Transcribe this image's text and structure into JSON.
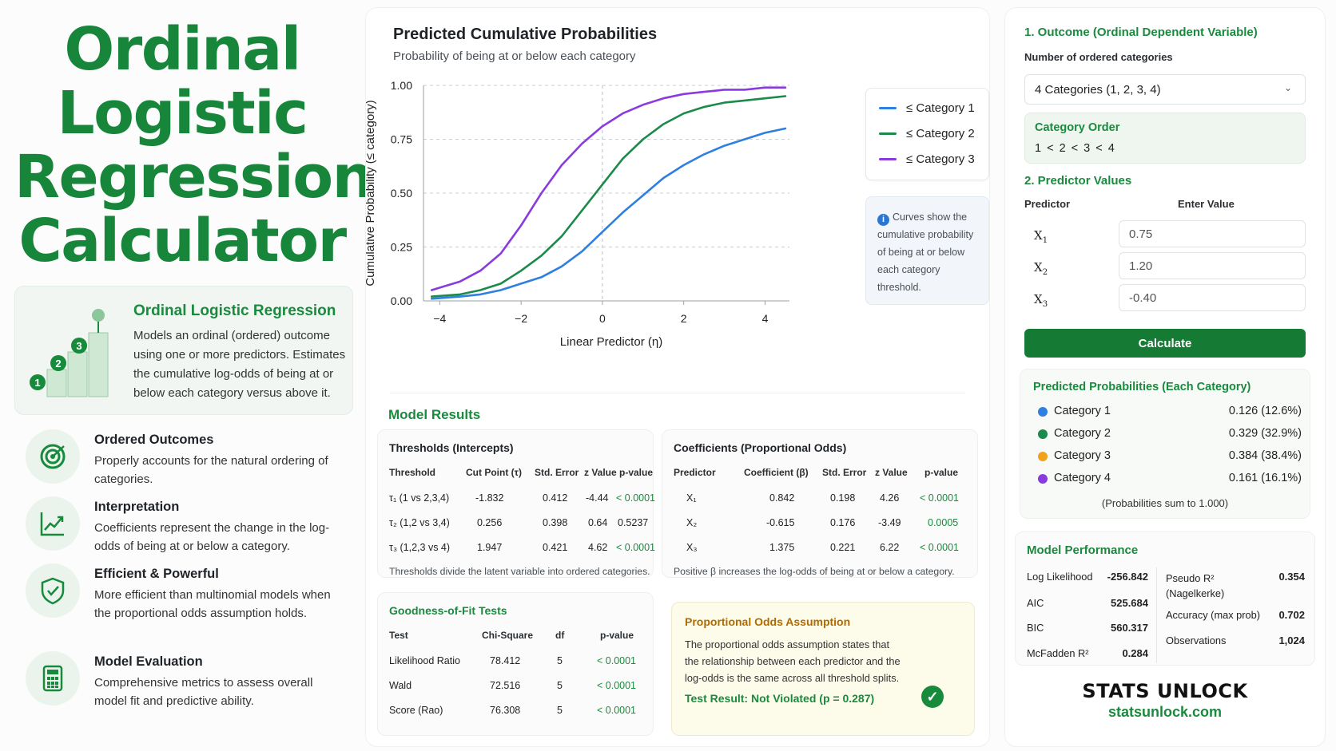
{
  "left": {
    "title_lines": [
      "Ordinal",
      "Logistic",
      "Regression",
      "Calculator"
    ],
    "intro": {
      "heading": "Ordinal Logistic Regression",
      "text": "Models an ordinal (ordered) outcome using one or more predictors. Estimates the cumulative log-odds of being at or below each category versus above it.",
      "step_numbers": [
        "1",
        "2",
        "3"
      ]
    },
    "features": [
      {
        "icon": "target-icon",
        "title": "Ordered Outcomes",
        "text": "Properly accounts for the natural ordering of categories."
      },
      {
        "icon": "trend-chart-icon",
        "title": "Interpretation",
        "text": "Coefficients represent the change in the log-odds of being at or below a category."
      },
      {
        "icon": "shield-check-icon",
        "title": "Efficient & Powerful",
        "text": "More efficient than multinomial models when the proportional odds assumption holds."
      },
      {
        "icon": "calculator-icon",
        "title": "Model Evaluation",
        "text": "Comprehensive metrics to assess overall model fit and predictive ability."
      }
    ]
  },
  "chart": {
    "title": "Predicted Cumulative Probabilities",
    "subtitle": "Probability of being at or below each category",
    "note": "Curves show the cumulative probability of being at or below each category threshold.",
    "note_icon": "info-icon"
  },
  "chart_data": {
    "type": "line",
    "title": "Predicted Cumulative Probabilities",
    "subtitle": "Probability of being at or below each category",
    "xlabel": "Linear Predictor (η)",
    "ylabel": "Cumulative Probability (≤ category)",
    "xlim": [
      -4.4,
      4.6
    ],
    "ylim": [
      0,
      1
    ],
    "x_ticks": [
      "−4",
      "−2",
      "0",
      "2",
      "4"
    ],
    "x_tick_values": [
      -4,
      -2,
      0,
      2,
      4
    ],
    "y_ticks": [
      "0.00",
      "0.25",
      "0.50",
      "0.75",
      "1.00"
    ],
    "y_tick_values": [
      0,
      0.25,
      0.5,
      0.75,
      1
    ],
    "vertical_reference_line": 0,
    "grid": "horizontal dashed",
    "legend_position": "right",
    "x": [
      -4.2,
      -3.5,
      -3,
      -2.5,
      -2,
      -1.5,
      -1,
      -0.5,
      0,
      0.5,
      1,
      1.5,
      2,
      2.5,
      3,
      3.5,
      4,
      4.5
    ],
    "series": [
      {
        "name": "≤ Category 1",
        "color": "#2f7fe0",
        "values": [
          0.01,
          0.02,
          0.03,
          0.05,
          0.08,
          0.11,
          0.16,
          0.23,
          0.32,
          0.41,
          0.49,
          0.57,
          0.63,
          0.68,
          0.72,
          0.75,
          0.78,
          0.8
        ]
      },
      {
        "name": "≤ Category 2",
        "color": "#1c8a4a",
        "values": [
          0.02,
          0.03,
          0.05,
          0.08,
          0.14,
          0.21,
          0.3,
          0.42,
          0.54,
          0.66,
          0.75,
          0.82,
          0.87,
          0.9,
          0.92,
          0.93,
          0.94,
          0.95
        ]
      },
      {
        "name": "≤ Category 3",
        "color": "#8a3be0",
        "values": [
          0.05,
          0.09,
          0.14,
          0.22,
          0.35,
          0.5,
          0.63,
          0.73,
          0.81,
          0.87,
          0.91,
          0.94,
          0.96,
          0.97,
          0.98,
          0.98,
          0.99,
          0.99
        ]
      }
    ]
  },
  "results": {
    "heading": "Model Results",
    "thresholds": {
      "title": "Thresholds (Intercepts)",
      "headers": [
        "Threshold",
        "Cut Point (τ)",
        "Std. Error",
        "z Value",
        "p-value"
      ],
      "rows": [
        [
          "τ₁ (1 vs 2,3,4)",
          "-1.832",
          "0.412",
          "-4.44",
          "< 0.0001"
        ],
        [
          "τ₂ (1,2 vs 3,4)",
          "0.256",
          "0.398",
          "0.64",
          "0.5237"
        ],
        [
          "τ₃ (1,2,3 vs 4)",
          "1.947",
          "0.421",
          "4.62",
          "< 0.0001"
        ]
      ],
      "footnote": "Thresholds divide the latent variable into ordered categories."
    },
    "coefficients": {
      "title": "Coefficients (Proportional Odds)",
      "headers": [
        "Predictor",
        "Coefficient (β)",
        "Std. Error",
        "z Value",
        "p-value"
      ],
      "rows": [
        [
          "X₁",
          "0.842",
          "0.198",
          "4.26",
          "< 0.0001"
        ],
        [
          "X₂",
          "-0.615",
          "0.176",
          "-3.49",
          "0.0005"
        ],
        [
          "X₃",
          "1.375",
          "0.221",
          "6.22",
          "< 0.0001"
        ]
      ],
      "footnote": "Positive β increases the log-odds of being at or below a category."
    },
    "gof": {
      "title": "Goodness-of-Fit Tests",
      "headers": [
        "Test",
        "Chi-Square",
        "df",
        "p-value"
      ],
      "rows": [
        [
          "Likelihood Ratio",
          "78.412",
          "5",
          "< 0.0001"
        ],
        [
          "Wald",
          "72.516",
          "5",
          "< 0.0001"
        ],
        [
          "Score (Rao)",
          "76.308",
          "5",
          "< 0.0001"
        ]
      ]
    },
    "po": {
      "title": "Proportional Odds Assumption",
      "text": "The proportional odds assumption states that the relationship between each predictor and the log-odds is the same across all threshold splits.",
      "result": "Test Result: Not Violated (p = 0.287)",
      "check": "✓"
    }
  },
  "inputs": {
    "outcome_heading": "1. Outcome (Ordinal Dependent Variable)",
    "num_categories_label": "Number of ordered categories",
    "num_categories_value": "4 Categories (1, 2, 3, 4)",
    "order_title": "Category Order",
    "order_value": "1 < 2 < 3 < 4",
    "predictor_heading": "2. Predictor Values",
    "predictor_col": "Predictor",
    "value_col": "Enter Value",
    "predictors": [
      {
        "name": "X",
        "sub": "1",
        "value": "0.75"
      },
      {
        "name": "X",
        "sub": "2",
        "value": "1.20"
      },
      {
        "name": "X",
        "sub": "3",
        "value": "-0.40"
      }
    ],
    "calculate_label": "Calculate"
  },
  "probabilities": {
    "title": "Predicted Probabilities (Each Category)",
    "rows": [
      {
        "label": "Category 1",
        "value": "0.126  (12.6%)",
        "color": "#2f7fe0"
      },
      {
        "label": "Category 2",
        "value": "0.329  (32.9%)",
        "color": "#1c8a4a"
      },
      {
        "label": "Category 3",
        "value": "0.384  (38.4%)",
        "color": "#f2a11d"
      },
      {
        "label": "Category 4",
        "value": "0.161  (16.1%)",
        "color": "#8a3be0"
      }
    ],
    "note": "(Probabilities sum to 1.000)"
  },
  "performance": {
    "title": "Model Performance",
    "left": [
      {
        "label": "Log Likelihood",
        "value": "-256.842"
      },
      {
        "label": "AIC",
        "value": "525.684"
      },
      {
        "label": "BIC",
        "value": "560.317"
      },
      {
        "label": "McFadden R²",
        "value": "0.284"
      }
    ],
    "right": [
      {
        "label": "Pseudo R²\n(Nagelkerke)",
        "value": "0.354"
      },
      {
        "label": "Accuracy (max prob)",
        "value": "0.702"
      },
      {
        "label": "Observations",
        "value": "1,024"
      }
    ]
  },
  "brand": {
    "name": "STATS UNLOCK",
    "url": "statsunlock.com"
  },
  "colors": {
    "accent": "#17853a",
    "button": "#157a33",
    "warning": "#b06b00"
  }
}
